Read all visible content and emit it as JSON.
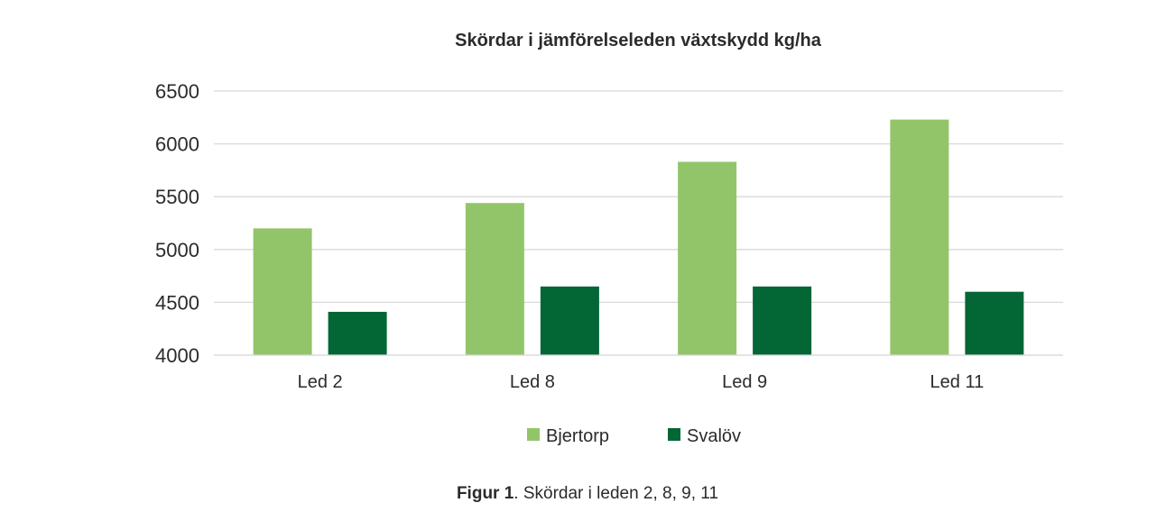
{
  "chart_data": {
    "type": "bar",
    "title": "Skördar i jämförelseleden växtskydd kg/ha",
    "xlabel": "",
    "ylabel": "",
    "categories": [
      "Led 2",
      "Led 8",
      "Led 9",
      "Led 11"
    ],
    "series": [
      {
        "name": "Bjertorp",
        "color": "#92c569",
        "values": [
          5200,
          5440,
          5830,
          6230
        ]
      },
      {
        "name": "Svalöv",
        "color": "#036635",
        "values": [
          4410,
          4650,
          4650,
          4600
        ]
      }
    ],
    "ylim": [
      4000,
      6500
    ],
    "yticks": [
      4000,
      4500,
      5000,
      5500,
      6000,
      6500
    ],
    "ytick_labels": [
      "4000",
      "4500",
      "5000",
      "5500",
      "6000",
      "6500"
    ],
    "grid": true,
    "gridline_color": "#d9d9d9",
    "legend_position": "bottom"
  },
  "caption": {
    "label": "Figur 1",
    "text": ". Skördar i leden 2, 8, 9, 11"
  }
}
